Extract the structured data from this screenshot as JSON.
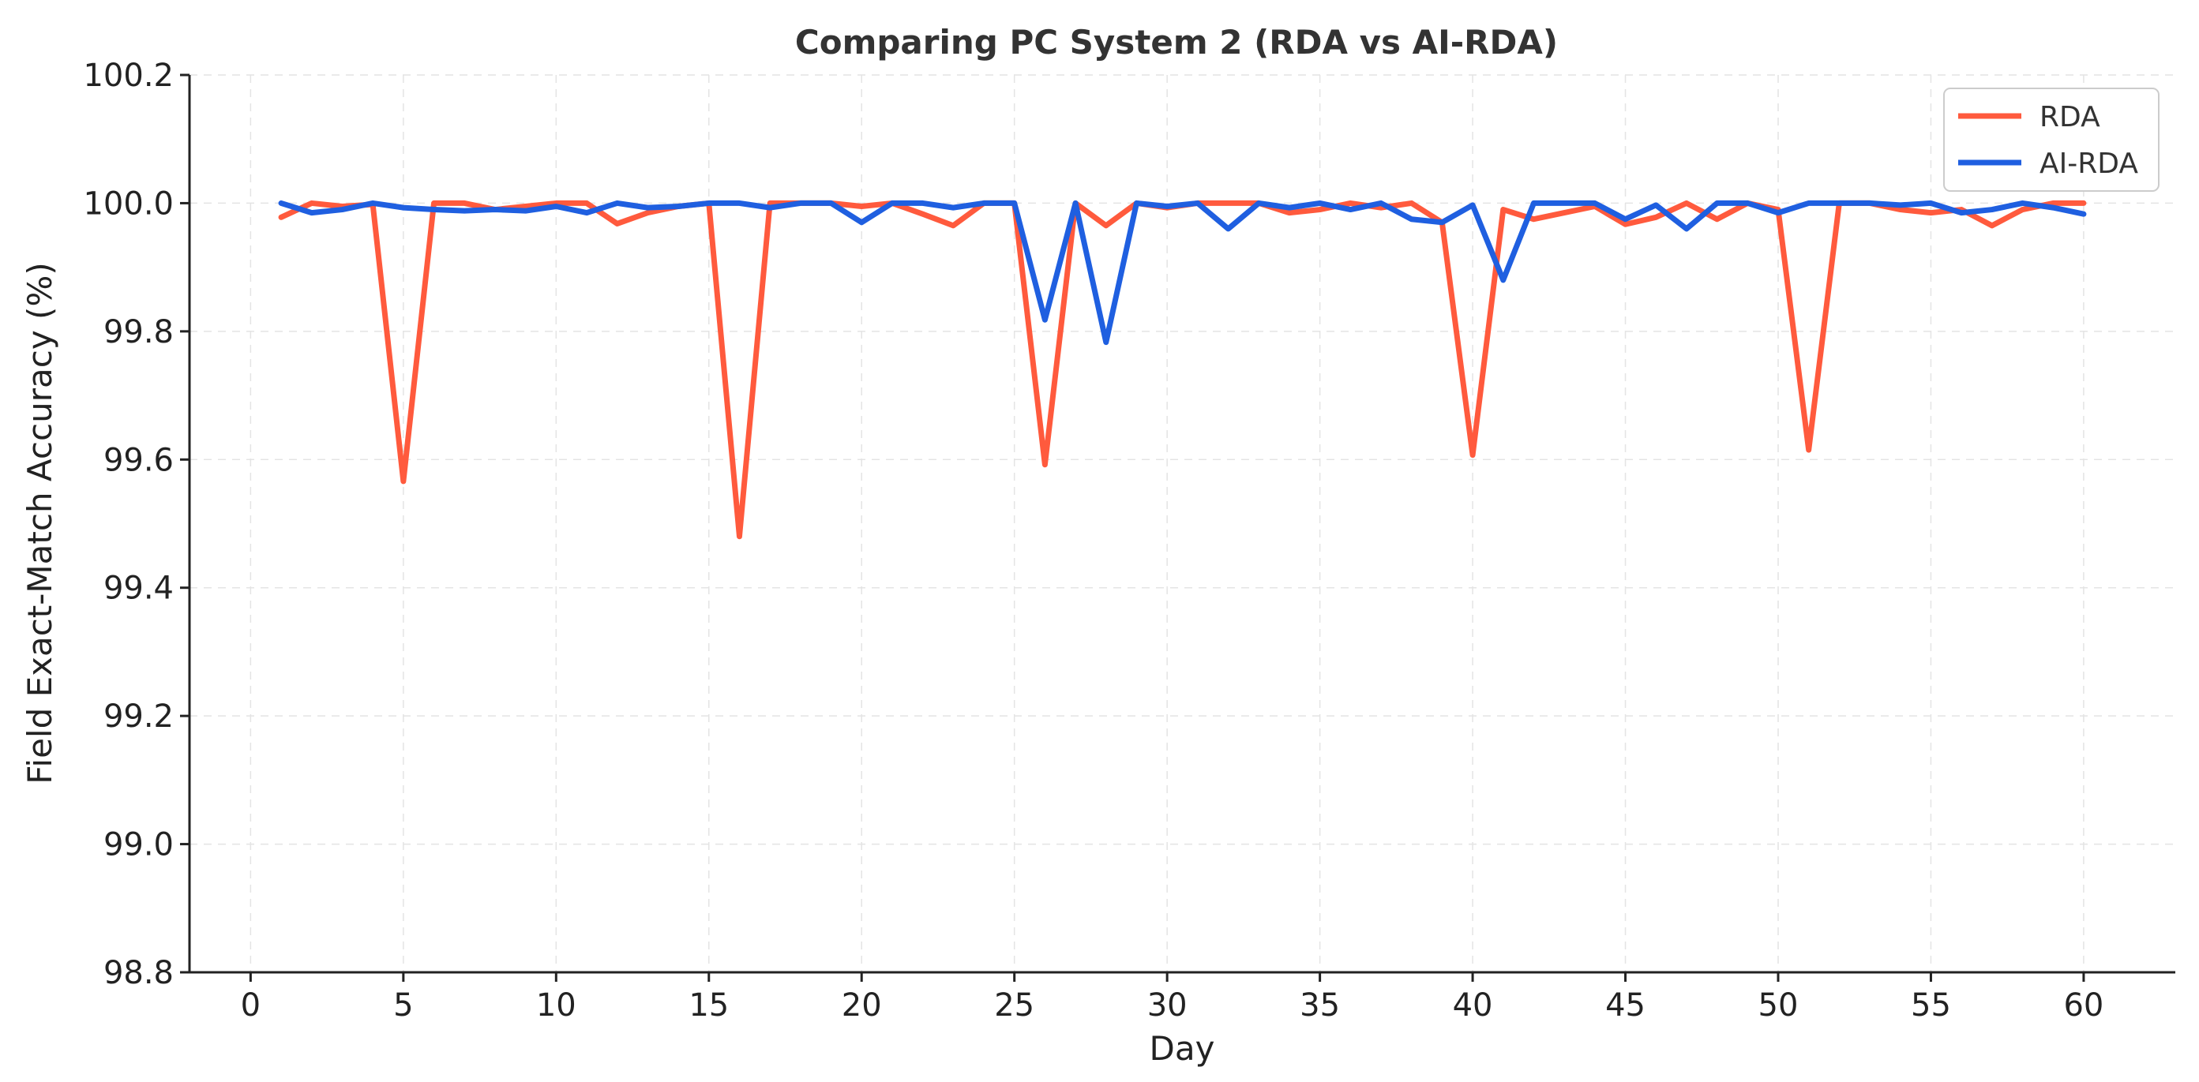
{
  "chart_data": {
    "type": "line",
    "title": "Comparing PC System 2 (RDA vs AI-RDA)",
    "xlabel": "Day",
    "ylabel": "Field Exact-Match Accuracy (%)",
    "xlim": [
      -2,
      63
    ],
    "ylim": [
      98.8,
      100.2
    ],
    "xticks": [
      0,
      5,
      10,
      15,
      20,
      25,
      30,
      35,
      40,
      45,
      50,
      55,
      60
    ],
    "yticks": [
      98.8,
      99.0,
      99.2,
      99.4,
      99.6,
      99.8,
      100.0,
      100.2
    ],
    "grid": true,
    "legend_position": "top-right",
    "x": [
      1,
      2,
      3,
      4,
      5,
      6,
      7,
      8,
      9,
      10,
      11,
      12,
      13,
      14,
      15,
      16,
      17,
      18,
      19,
      20,
      21,
      22,
      23,
      24,
      25,
      26,
      27,
      28,
      29,
      30,
      31,
      32,
      33,
      34,
      35,
      36,
      37,
      38,
      39,
      40,
      41,
      42,
      43,
      44,
      45,
      46,
      47,
      48,
      49,
      50,
      51,
      52,
      53,
      54,
      55,
      56,
      57,
      58,
      59,
      60
    ],
    "series": [
      {
        "name": "RDA",
        "color": "#FF5A3D",
        "values": [
          99.978,
          100.0,
          99.995,
          99.998,
          99.566,
          100.0,
          100.0,
          99.99,
          99.995,
          100.0,
          100.0,
          99.968,
          99.985,
          99.995,
          100.0,
          99.48,
          100.0,
          100.0,
          100.0,
          99.995,
          100.0,
          99.983,
          99.965,
          100.0,
          100.0,
          99.592,
          100.0,
          99.965,
          100.0,
          99.993,
          100.0,
          100.0,
          100.0,
          99.985,
          99.99,
          100.0,
          99.993,
          100.0,
          99.97,
          99.607,
          99.99,
          99.975,
          99.985,
          99.995,
          99.967,
          99.978,
          100.0,
          99.975,
          100.0,
          99.99,
          99.615,
          100.0,
          100.0,
          99.99,
          99.985,
          99.99,
          99.965,
          99.99,
          100.0,
          100.0
        ]
      },
      {
        "name": "AI-RDA",
        "color": "#1F5FE0",
        "values": [
          100.0,
          99.985,
          99.99,
          100.0,
          99.993,
          99.99,
          99.988,
          99.99,
          99.988,
          99.995,
          99.985,
          100.0,
          99.993,
          99.995,
          100.0,
          100.0,
          99.993,
          100.0,
          100.0,
          99.97,
          100.0,
          100.0,
          99.993,
          100.0,
          100.0,
          99.818,
          100.0,
          99.783,
          100.0,
          99.995,
          100.0,
          99.96,
          100.0,
          99.993,
          100.0,
          99.99,
          100.0,
          99.975,
          99.97,
          99.997,
          99.88,
          100.0,
          100.0,
          100.0,
          99.975,
          99.997,
          99.96,
          100.0,
          100.0,
          99.985,
          100.0,
          100.0,
          100.0,
          99.997,
          100.0,
          99.985,
          99.99,
          100.0,
          99.993,
          99.983
        ]
      }
    ]
  }
}
